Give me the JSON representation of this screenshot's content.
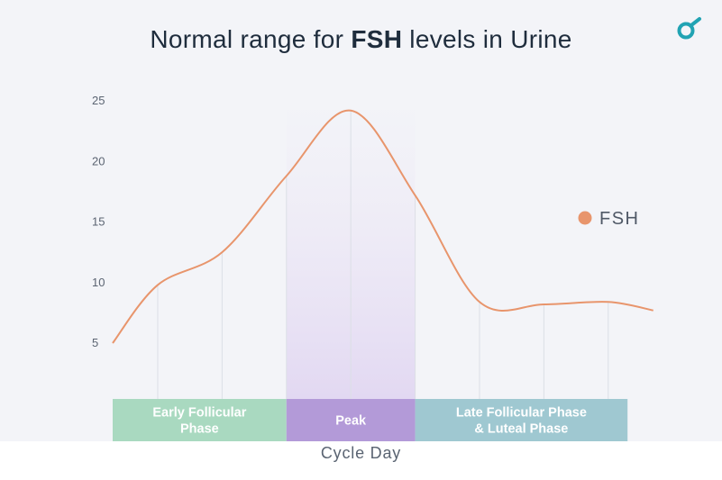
{
  "header": {
    "title_prefix": "Normal range for ",
    "title_bold": "FSH",
    "title_suffix": " levels in Urine"
  },
  "brand": {
    "icon": "brand-logo-icon",
    "color": "#21a3b3"
  },
  "chart_data": {
    "type": "line",
    "title": "Normal range for FSH levels in Urine",
    "xlabel": "Cycle Day",
    "ylabel": "",
    "yticks": [
      5,
      10,
      15,
      20,
      25
    ],
    "ylim": [
      0,
      26
    ],
    "legend": {
      "placement": "right",
      "entries": [
        "FSH"
      ]
    },
    "series": [
      {
        "name": "FSH",
        "color": "#e8956c",
        "x": [
          0,
          0.7,
          1.7,
          2.7,
          3.7,
          4.7,
          5.7,
          6.7,
          7.7,
          8.4
        ],
        "y": [
          5,
          9.8,
          12.5,
          18.8,
          24.2,
          17.2,
          8.4,
          8.2,
          8.4,
          7.7
        ]
      }
    ],
    "phases": [
      {
        "label": "Early Follicular\nPhase",
        "lines": [
          "Early Follicular",
          "Phase"
        ],
        "start": 0,
        "end": 2.7,
        "color": "#a9d9c0"
      },
      {
        "label": "Peak",
        "lines": [
          "Peak"
        ],
        "start": 2.7,
        "end": 4.7,
        "color": "#b39ad8"
      },
      {
        "label": "Late Follicular Phase\n& Luteal Phase",
        "lines": [
          "Late Follicular Phase",
          "& Luteal Phase"
        ],
        "start": 4.7,
        "end": 8.0,
        "color": "#9fc8d1"
      }
    ],
    "grid": true
  }
}
